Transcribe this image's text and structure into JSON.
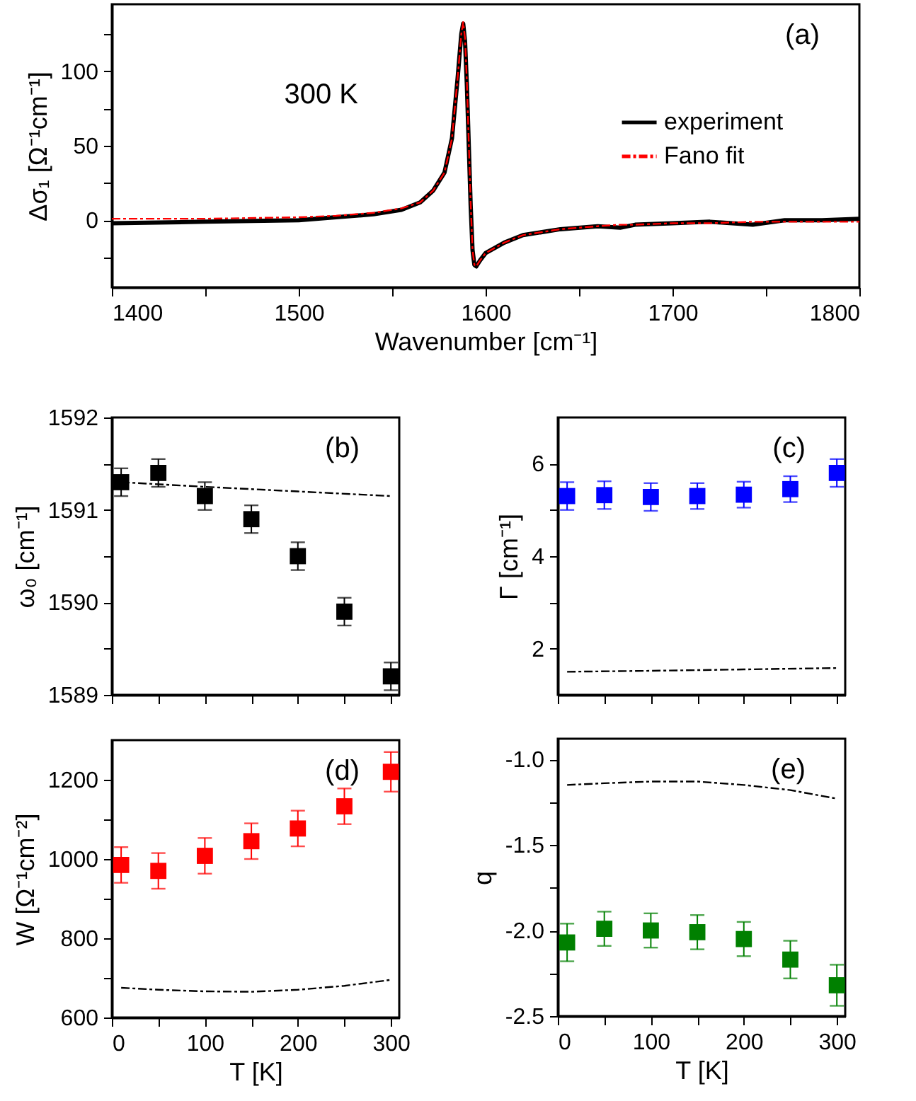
{
  "chart_data": [
    {
      "type": "line",
      "xlabel": "Wavenumber [cm⁻¹]",
      "ylabel": "Δσ₁ [Ω⁻¹cm⁻¹]",
      "xlim": [
        1400,
        1800
      ],
      "ylim": [
        -45,
        145
      ],
      "xticks": [
        1400,
        {
          "value": 1450,
          "label": null
        },
        1500,
        {
          "value": 1550,
          "label": null
        },
        1600,
        {
          "value": 1650,
          "label": null
        },
        1700,
        {
          "value": 1750,
          "label": null
        },
        1800
      ],
      "yticks": [
        {
          "value": -25,
          "label": null
        },
        0,
        {
          "value": 25,
          "label": null
        },
        50,
        {
          "value": 75,
          "label": null
        },
        100,
        {
          "value": 125,
          "label": null
        }
      ],
      "x": [
        1400,
        1450,
        1500,
        1520,
        1540,
        1555,
        1565,
        1572,
        1578,
        1582,
        1585,
        1587,
        1588,
        1589,
        1590,
        1591,
        1592,
        1593,
        1594,
        1595,
        1597,
        1600,
        1610,
        1620,
        1640,
        1660,
        1672,
        1680,
        1700,
        1720,
        1743,
        1760,
        1780,
        1800
      ],
      "series": [
        {
          "name": "experiment",
          "color": "#000000",
          "line_style": "solid",
          "values": [
            -2,
            -1,
            0,
            2,
            4,
            7,
            12,
            20,
            32,
            55,
            95,
            125,
            132,
            120,
            90,
            50,
            10,
            -20,
            -30,
            -31,
            -27,
            -22,
            -15,
            -10,
            -6,
            -4,
            -5,
            -3,
            -2,
            -1,
            -3,
            0,
            0,
            1
          ]
        },
        {
          "name": "Fano fit",
          "color": "#ff0000",
          "line_style": "dashed",
          "values": [
            1,
            1,
            2,
            3,
            5,
            8,
            12,
            20,
            32,
            55,
            95,
            125,
            133,
            122,
            92,
            52,
            12,
            -20,
            -30,
            -31,
            -27,
            -22,
            -15,
            -10,
            -6,
            -4,
            -3,
            -3,
            -2,
            -2,
            -1,
            -1,
            -1,
            -1
          ]
        }
      ],
      "legend": "right",
      "annotations": [
        "(a)",
        "300 K"
      ]
    },
    {
      "type": "scatter",
      "ylabel": "ω₀ [cm⁻¹]",
      "xlim": [
        0,
        309
      ],
      "ylim": [
        1589,
        1592
      ],
      "tick_labels": "y",
      "xticks": [
        0,
        {
          "value": 50,
          "label": null
        },
        100,
        {
          "value": 150,
          "label": null
        },
        200,
        {
          "value": 250,
          "label": null
        },
        300
      ],
      "yticks": [
        1589,
        {
          "value": 1589.5,
          "label": null
        },
        1590,
        {
          "value": 1590.5,
          "label": null
        },
        1591,
        {
          "value": 1591.5,
          "label": null
        },
        1592
      ],
      "x": [
        10,
        50,
        100,
        150,
        200,
        250,
        300
      ],
      "series": [
        {
          "color": "#000000",
          "marker": "square",
          "values": [
            1591.3,
            1591.4,
            1591.15,
            1590.9,
            1590.5,
            1589.9,
            1589.2
          ],
          "errors": [
            0.15,
            0.15,
            0.15,
            0.15,
            0.15,
            0.15,
            0.15
          ]
        },
        {
          "type": "line",
          "color": "#000000",
          "line_style": "dashed",
          "x": [
            10,
            100,
            200,
            300
          ],
          "values": [
            1591.3,
            1591.25,
            1591.2,
            1591.15
          ]
        }
      ],
      "annotations": [
        "(b)"
      ]
    },
    {
      "type": "scatter",
      "ylabel": "Γ [cm⁻¹]",
      "xlim": [
        0,
        309
      ],
      "ylim": [
        1,
        7
      ],
      "tick_labels": "y",
      "xticks": [
        0,
        {
          "value": 50,
          "label": null
        },
        100,
        {
          "value": 150,
          "label": null
        },
        200,
        {
          "value": 250,
          "label": null
        },
        300
      ],
      "yticks": [
        2,
        {
          "value": 3,
          "label": null
        },
        4,
        {
          "value": 5,
          "label": null
        },
        6
      ],
      "x": [
        10,
        50,
        100,
        150,
        200,
        250,
        300
      ],
      "series": [
        {
          "color": "#0000ff",
          "marker": "square",
          "values": [
            5.3,
            5.32,
            5.28,
            5.3,
            5.33,
            5.45,
            5.8
          ],
          "errors": [
            0.3,
            0.3,
            0.3,
            0.28,
            0.28,
            0.28,
            0.3
          ]
        },
        {
          "type": "line",
          "color": "#000000",
          "line_style": "dashed",
          "x": [
            10,
            100,
            200,
            300
          ],
          "values": [
            1.5,
            1.52,
            1.55,
            1.58
          ]
        }
      ],
      "annotations": [
        "(c)"
      ]
    },
    {
      "type": "scatter",
      "xlabel": "T [K]",
      "ylabel": "W [Ω⁻¹cm⁻²]",
      "xlim": [
        0,
        309
      ],
      "ylim": [
        600,
        1300
      ],
      "xticks": [
        0,
        {
          "value": 50,
          "label": null
        },
        100,
        {
          "value": 150,
          "label": null
        },
        200,
        {
          "value": 250,
          "label": null
        },
        300
      ],
      "yticks": [
        600,
        {
          "value": 700,
          "label": null
        },
        800,
        {
          "value": 900,
          "label": null
        },
        1000,
        {
          "value": 1100,
          "label": null
        },
        1200
      ],
      "x": [
        10,
        50,
        100,
        150,
        200,
        250,
        300
      ],
      "series": [
        {
          "color": "#ff0000",
          "marker": "square",
          "values": [
            985,
            970,
            1008,
            1045,
            1077,
            1133,
            1220
          ],
          "errors": [
            45,
            45,
            45,
            45,
            45,
            45,
            50
          ]
        },
        {
          "type": "line",
          "color": "#000000",
          "line_style": "dashed",
          "x": [
            10,
            50,
            100,
            150,
            200,
            250,
            300
          ],
          "values": [
            675,
            670,
            666,
            665,
            670,
            680,
            695
          ]
        }
      ],
      "annotations": [
        "(d)"
      ]
    },
    {
      "type": "scatter",
      "xlabel": "T [K]",
      "ylabel": "q",
      "xlim": [
        0,
        309
      ],
      "ylim": [
        -2.5,
        -0.88
      ],
      "xticks": [
        0,
        {
          "value": 50,
          "label": null
        },
        100,
        {
          "value": 150,
          "label": null
        },
        200,
        {
          "value": 250,
          "label": null
        },
        300
      ],
      "yticks": [
        {
          "value": -2.5,
          "label": "-2.5"
        },
        {
          "value": -2.25,
          "label": null
        },
        {
          "value": -2.0,
          "label": "-2.0"
        },
        {
          "value": -1.75,
          "label": null
        },
        {
          "value": -1.5,
          "label": "-1.5"
        },
        {
          "value": -1.25,
          "label": null
        },
        {
          "value": -1.0,
          "label": "-1.0"
        }
      ],
      "x": [
        10,
        50,
        100,
        150,
        200,
        250,
        300
      ],
      "series": [
        {
          "color": "#008000",
          "marker": "square",
          "values": [
            -2.07,
            -1.99,
            -2.0,
            -2.01,
            -2.05,
            -2.17,
            -2.32
          ],
          "errors": [
            0.11,
            0.1,
            0.1,
            0.1,
            0.1,
            0.11,
            0.12
          ]
        },
        {
          "type": "line",
          "color": "#000000",
          "line_style": "dashed",
          "x": [
            10,
            50,
            100,
            150,
            200,
            250,
            300
          ],
          "values": [
            -1.15,
            -1.14,
            -1.13,
            -1.13,
            -1.15,
            -1.18,
            -1.23
          ]
        }
      ],
      "annotations": [
        "(e)"
      ]
    }
  ]
}
